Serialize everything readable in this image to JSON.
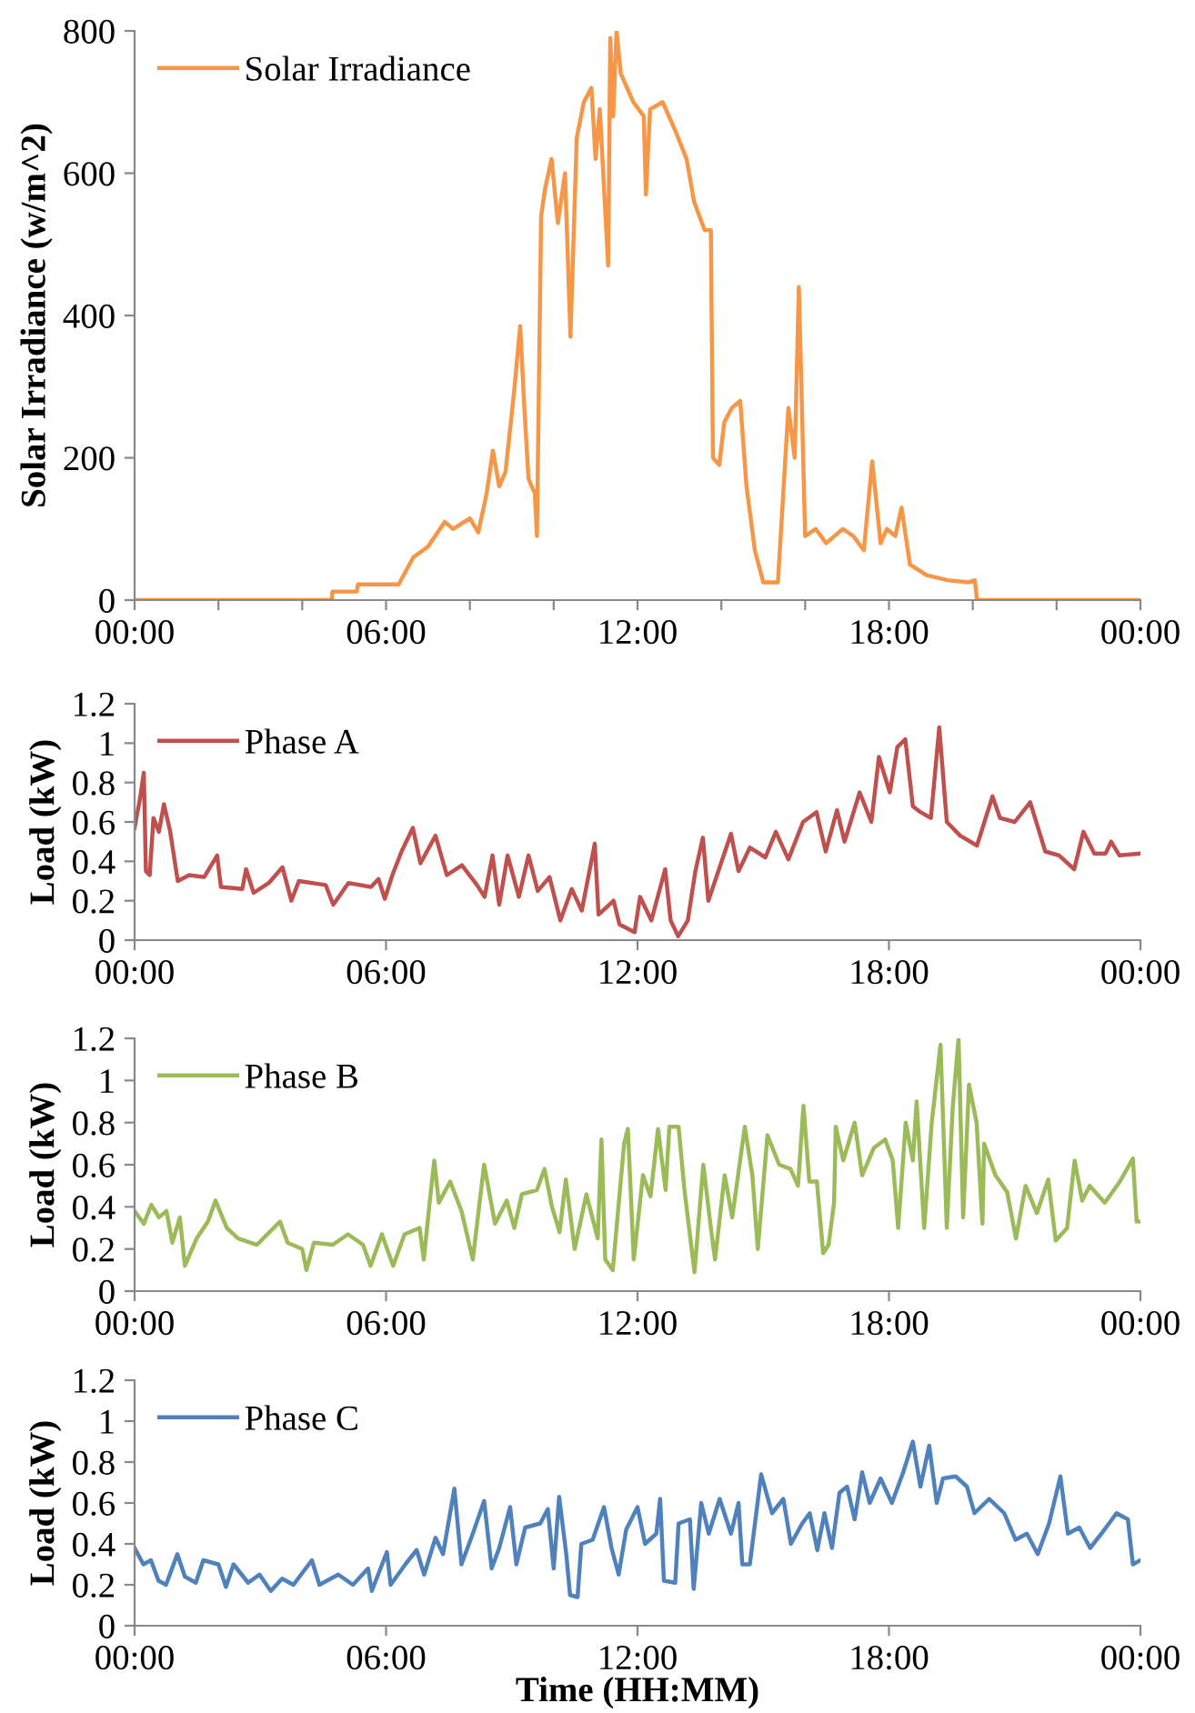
{
  "chart_data": [
    {
      "type": "line",
      "ylabel": "Solar Irradiance (w/m^2)",
      "legend": "top left",
      "grid": false,
      "xlim": [
        0,
        24
      ],
      "xticks": [
        {
          "value": 0,
          "label": "00:00"
        },
        {
          "value": 2,
          "label": null
        },
        {
          "value": 4,
          "label": null
        },
        {
          "value": 6,
          "label": "06:00"
        },
        {
          "value": 8,
          "label": null
        },
        {
          "value": 10,
          "label": null
        },
        {
          "value": 12,
          "label": "12:00"
        },
        {
          "value": 14,
          "label": null
        },
        {
          "value": 16,
          "label": null
        },
        {
          "value": 18,
          "label": "18:00"
        },
        {
          "value": 20,
          "label": null
        },
        {
          "value": 22,
          "label": null
        },
        {
          "value": 24,
          "label": "00:00"
        }
      ],
      "ylim": [
        0,
        800
      ],
      "yticks": [
        0,
        200,
        400,
        600,
        800
      ],
      "series": [
        {
          "name": "Solar Irradiance",
          "color": "#f79646",
          "x": [
            0,
            4.7,
            4.72,
            5.3,
            5.33,
            6.3,
            6.65,
            7.0,
            7.4,
            7.6,
            8.0,
            8.2,
            8.4,
            8.55,
            8.7,
            8.85,
            9.05,
            9.2,
            9.3,
            9.4,
            9.55,
            9.6,
            9.7,
            9.8,
            9.95,
            10.1,
            10.27,
            10.4,
            10.55,
            10.72,
            10.9,
            11.0,
            11.1,
            11.3,
            11.35,
            11.42,
            11.5,
            11.6,
            11.9,
            12.15,
            12.2,
            12.3,
            12.6,
            12.9,
            13.17,
            13.35,
            13.6,
            13.75,
            13.8,
            13.95,
            14.07,
            14.25,
            14.45,
            14.6,
            14.8,
            15.0,
            15.35,
            15.6,
            15.75,
            15.85,
            16.0,
            16.25,
            16.5,
            16.9,
            17.15,
            17.4,
            17.6,
            17.8,
            17.95,
            18.15,
            18.3,
            18.5,
            18.9,
            19.4,
            19.9,
            20.05,
            20.1,
            24
          ],
          "values": [
            0,
            0,
            12,
            12,
            22,
            22,
            60,
            75,
            110,
            100,
            115,
            95,
            150,
            210,
            160,
            180,
            290,
            385,
            270,
            170,
            150,
            90,
            540,
            580,
            620,
            530,
            600,
            370,
            650,
            700,
            720,
            620,
            690,
            470,
            790,
            680,
            800,
            740,
            700,
            680,
            570,
            690,
            700,
            660,
            620,
            560,
            520,
            520,
            200,
            190,
            250,
            270,
            280,
            160,
            70,
            25,
            25,
            270,
            200,
            440,
            90,
            100,
            80,
            100,
            90,
            70,
            195,
            80,
            100,
            90,
            130,
            50,
            35,
            28,
            25,
            28,
            0,
            0
          ]
        }
      ]
    },
    {
      "type": "line",
      "ylabel": "Load (kW)",
      "legend": "top left",
      "grid": false,
      "xlim": [
        0,
        24
      ],
      "xticks": [
        {
          "value": 0,
          "label": "00:00"
        },
        {
          "value": 6,
          "label": "06:00"
        },
        {
          "value": 12,
          "label": "12:00"
        },
        {
          "value": 18,
          "label": "18:00"
        },
        {
          "value": 24,
          "label": "00:00"
        }
      ],
      "ylim": [
        0,
        1.2
      ],
      "yticks": [
        0,
        0.2,
        0.4,
        0.6,
        0.8,
        1,
        1.2
      ],
      "series": [
        {
          "name": "Phase A",
          "color": "#c0504d",
          "x": [
            0,
            0.13,
            0.22,
            0.27,
            0.36,
            0.45,
            0.58,
            0.7,
            0.85,
            1.03,
            1.3,
            1.66,
            1.97,
            2.06,
            2.57,
            2.66,
            2.84,
            3.2,
            3.53,
            3.74,
            3.92,
            4.56,
            4.74,
            5.1,
            5.64,
            5.82,
            5.97,
            6.15,
            6.37,
            6.64,
            6.82,
            7.18,
            7.45,
            7.81,
            8.17,
            8.35,
            8.54,
            8.7,
            8.9,
            9.17,
            9.4,
            9.62,
            9.9,
            10.16,
            10.43,
            10.67,
            10.98,
            11.07,
            11.43,
            11.57,
            11.93,
            12.06,
            12.33,
            12.66,
            12.79,
            12.97,
            13.2,
            13.38,
            13.56,
            13.69,
            14.23,
            14.41,
            14.68,
            15.05,
            15.3,
            15.6,
            15.95,
            16.27,
            16.49,
            16.76,
            16.94,
            17.3,
            17.58,
            17.76,
            18.02,
            18.2,
            18.39,
            18.57,
            18.75,
            19.0,
            19.2,
            19.38,
            19.7,
            20.1,
            20.47,
            20.65,
            21.0,
            21.37,
            21.73,
            22.06,
            22.42,
            22.64,
            22.9,
            23.17,
            23.3,
            23.5,
            24
          ],
          "values": [
            0.57,
            0.72,
            0.85,
            0.35,
            0.33,
            0.62,
            0.55,
            0.69,
            0.55,
            0.3,
            0.33,
            0.32,
            0.43,
            0.27,
            0.26,
            0.36,
            0.24,
            0.29,
            0.37,
            0.2,
            0.3,
            0.28,
            0.18,
            0.29,
            0.27,
            0.31,
            0.21,
            0.33,
            0.45,
            0.57,
            0.39,
            0.53,
            0.33,
            0.38,
            0.28,
            0.22,
            0.43,
            0.18,
            0.43,
            0.22,
            0.43,
            0.25,
            0.32,
            0.1,
            0.26,
            0.15,
            0.49,
            0.13,
            0.2,
            0.08,
            0.04,
            0.22,
            0.1,
            0.36,
            0.1,
            0.02,
            0.1,
            0.35,
            0.52,
            0.2,
            0.54,
            0.35,
            0.47,
            0.42,
            0.55,
            0.41,
            0.6,
            0.65,
            0.45,
            0.66,
            0.5,
            0.75,
            0.6,
            0.93,
            0.75,
            0.98,
            1.02,
            0.68,
            0.65,
            0.62,
            1.08,
            0.6,
            0.53,
            0.48,
            0.73,
            0.62,
            0.6,
            0.7,
            0.45,
            0.43,
            0.36,
            0.55,
            0.44,
            0.44,
            0.5,
            0.43,
            0.44
          ]
        }
      ]
    },
    {
      "type": "line",
      "ylabel": "Load (kW)",
      "legend": "top left",
      "grid": false,
      "xlim": [
        0,
        24
      ],
      "xticks": [
        {
          "value": 0,
          "label": "00:00"
        },
        {
          "value": 6,
          "label": "06:00"
        },
        {
          "value": 12,
          "label": "12:00"
        },
        {
          "value": 18,
          "label": "18:00"
        },
        {
          "value": 24,
          "label": "00:00"
        }
      ],
      "ylim": [
        0,
        1.2
      ],
      "yticks": [
        0,
        0.2,
        0.4,
        0.6,
        0.8,
        1,
        1.2
      ],
      "series": [
        {
          "name": "Phase B",
          "color": "#9bbb59",
          "x": [
            0,
            0.22,
            0.4,
            0.58,
            0.76,
            0.9,
            1.08,
            1.2,
            1.48,
            1.75,
            1.93,
            2.2,
            2.47,
            2.92,
            3.47,
            3.65,
            4.0,
            4.1,
            4.28,
            4.73,
            5.09,
            5.45,
            5.63,
            5.9,
            6.17,
            6.44,
            6.8,
            6.9,
            7.04,
            7.15,
            7.26,
            7.53,
            7.8,
            8.07,
            8.34,
            8.6,
            8.88,
            9.06,
            9.24,
            9.6,
            9.78,
            9.96,
            10.14,
            10.29,
            10.5,
            10.78,
            11.05,
            11.14,
            11.23,
            11.41,
            11.68,
            11.77,
            11.91,
            12.13,
            12.31,
            12.49,
            12.67,
            12.76,
            12.98,
            13.12,
            13.36,
            13.57,
            13.75,
            13.85,
            14.08,
            14.26,
            14.56,
            14.74,
            14.87,
            15.1,
            15.38,
            15.65,
            15.83,
            15.96,
            16.1,
            16.28,
            16.43,
            16.56,
            16.69,
            16.73,
            16.91,
            17.18,
            17.36,
            17.64,
            17.91,
            18.09,
            18.22,
            18.4,
            18.57,
            18.66,
            18.84,
            19.02,
            19.23,
            19.38,
            19.52,
            19.66,
            19.77,
            19.91,
            20.09,
            20.23,
            20.27,
            20.54,
            20.82,
            21.03,
            21.26,
            21.53,
            21.8,
            21.98,
            22.25,
            22.43,
            22.61,
            22.79,
            23.15,
            23.51,
            23.82,
            23.91,
            24
          ],
          "values": [
            0.38,
            0.32,
            0.41,
            0.35,
            0.38,
            0.23,
            0.35,
            0.12,
            0.25,
            0.33,
            0.43,
            0.3,
            0.25,
            0.22,
            0.33,
            0.23,
            0.2,
            0.1,
            0.23,
            0.22,
            0.27,
            0.22,
            0.12,
            0.27,
            0.12,
            0.27,
            0.3,
            0.15,
            0.42,
            0.62,
            0.42,
            0.52,
            0.38,
            0.15,
            0.6,
            0.32,
            0.43,
            0.3,
            0.46,
            0.48,
            0.58,
            0.4,
            0.28,
            0.53,
            0.2,
            0.46,
            0.25,
            0.72,
            0.15,
            0.1,
            0.7,
            0.77,
            0.15,
            0.55,
            0.45,
            0.77,
            0.48,
            0.78,
            0.78,
            0.48,
            0.09,
            0.6,
            0.3,
            0.15,
            0.55,
            0.35,
            0.78,
            0.55,
            0.2,
            0.74,
            0.6,
            0.58,
            0.5,
            0.88,
            0.52,
            0.52,
            0.18,
            0.22,
            0.42,
            0.78,
            0.62,
            0.8,
            0.55,
            0.68,
            0.72,
            0.62,
            0.3,
            0.8,
            0.62,
            0.9,
            0.3,
            0.8,
            1.17,
            0.3,
            0.87,
            1.2,
            0.35,
            0.98,
            0.8,
            0.32,
            0.7,
            0.55,
            0.47,
            0.25,
            0.5,
            0.37,
            0.53,
            0.24,
            0.3,
            0.62,
            0.43,
            0.5,
            0.42,
            0.52,
            0.63,
            0.33,
            0.33
          ]
        }
      ]
    },
    {
      "type": "line",
      "ylabel": "Load (kW)",
      "xlabel": "Time (HH:MM)",
      "legend": "top left",
      "grid": false,
      "xlim": [
        0,
        24
      ],
      "xticks": [
        {
          "value": 0,
          "label": "00:00"
        },
        {
          "value": 6,
          "label": "06:00"
        },
        {
          "value": 12,
          "label": "12:00"
        },
        {
          "value": 18,
          "label": "18:00"
        },
        {
          "value": 24,
          "label": "00:00"
        }
      ],
      "ylim": [
        0,
        1.2
      ],
      "yticks": [
        0,
        0.2,
        0.4,
        0.6,
        0.8,
        1,
        1.2
      ],
      "series": [
        {
          "name": "Phase C",
          "color": "#4f81bd",
          "x": [
            0,
            0.21,
            0.39,
            0.57,
            0.75,
            1.02,
            1.2,
            1.46,
            1.64,
            2.0,
            2.18,
            2.36,
            2.71,
            2.98,
            3.25,
            3.52,
            3.79,
            4.23,
            4.41,
            4.86,
            5.21,
            5.57,
            5.66,
            6.02,
            6.11,
            6.46,
            6.73,
            6.91,
            7.18,
            7.36,
            7.63,
            7.8,
            8.07,
            8.34,
            8.52,
            8.7,
            8.96,
            9.11,
            9.32,
            9.68,
            9.86,
            10.0,
            10.13,
            10.3,
            10.39,
            10.57,
            10.66,
            10.93,
            11.2,
            11.38,
            11.55,
            11.73,
            12.0,
            12.18,
            12.45,
            12.54,
            12.63,
            12.9,
            12.98,
            13.25,
            13.34,
            13.52,
            13.7,
            13.96,
            14.23,
            14.41,
            14.5,
            14.68,
            14.95,
            15.21,
            15.48,
            15.66,
            15.93,
            16.11,
            16.29,
            16.46,
            16.64,
            16.82,
            17.0,
            17.18,
            17.36,
            17.54,
            17.8,
            18.07,
            18.34,
            18.57,
            18.75,
            18.96,
            19.14,
            19.29,
            19.59,
            19.86,
            20.04,
            20.39,
            20.75,
            21.02,
            21.29,
            21.55,
            21.82,
            22.09,
            22.27,
            22.54,
            22.8,
            23.07,
            23.43,
            23.7,
            23.82,
            24
          ],
          "values": [
            0.38,
            0.3,
            0.32,
            0.22,
            0.2,
            0.35,
            0.24,
            0.21,
            0.32,
            0.3,
            0.19,
            0.3,
            0.21,
            0.25,
            0.17,
            0.23,
            0.2,
            0.32,
            0.2,
            0.25,
            0.2,
            0.28,
            0.17,
            0.36,
            0.2,
            0.3,
            0.37,
            0.25,
            0.43,
            0.35,
            0.67,
            0.3,
            0.45,
            0.61,
            0.28,
            0.38,
            0.58,
            0.3,
            0.48,
            0.5,
            0.57,
            0.28,
            0.63,
            0.35,
            0.15,
            0.14,
            0.4,
            0.42,
            0.58,
            0.38,
            0.25,
            0.47,
            0.58,
            0.4,
            0.45,
            0.62,
            0.22,
            0.21,
            0.5,
            0.52,
            0.18,
            0.6,
            0.45,
            0.62,
            0.45,
            0.6,
            0.3,
            0.3,
            0.74,
            0.55,
            0.62,
            0.4,
            0.5,
            0.55,
            0.37,
            0.55,
            0.38,
            0.65,
            0.68,
            0.52,
            0.75,
            0.6,
            0.72,
            0.6,
            0.75,
            0.9,
            0.68,
            0.88,
            0.6,
            0.72,
            0.73,
            0.68,
            0.55,
            0.62,
            0.55,
            0.42,
            0.45,
            0.35,
            0.5,
            0.73,
            0.45,
            0.48,
            0.38,
            0.45,
            0.55,
            0.52,
            0.3,
            0.32
          ]
        }
      ]
    }
  ]
}
